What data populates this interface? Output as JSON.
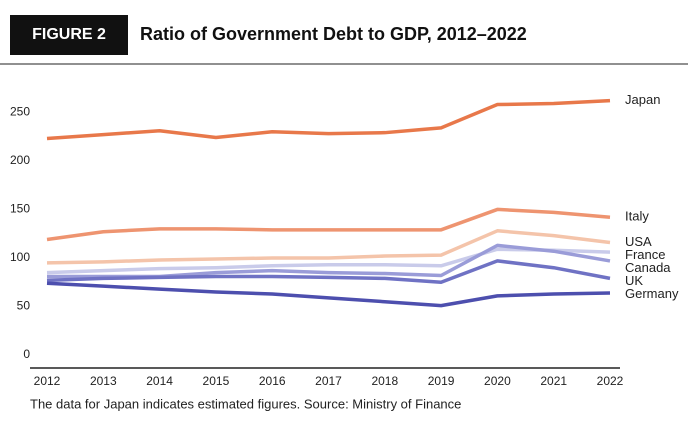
{
  "header": {
    "badge": "FIGURE 2"
  },
  "chart_data": {
    "type": "line",
    "title": "Ratio of Government Debt to GDP, 2012–2022",
    "categories": [
      "2012",
      "2013",
      "2014",
      "2015",
      "2016",
      "2017",
      "2018",
      "2019",
      "2020",
      "2021",
      "2022"
    ],
    "series": [
      {
        "name": "Japan",
        "color": "#e8784a",
        "values": [
          228,
          232,
          236,
          229,
          235,
          233,
          234,
          239,
          263,
          264,
          267
        ]
      },
      {
        "name": "Italy",
        "color": "#ee9470",
        "values": [
          124,
          132,
          135,
          135,
          134,
          134,
          134,
          134,
          155,
          152,
          147
        ]
      },
      {
        "name": "USA",
        "color": "#f4c4aa",
        "values": [
          100,
          101,
          103,
          104,
          105,
          105,
          107,
          108,
          133,
          128,
          121
        ]
      },
      {
        "name": "France",
        "color": "#c9cbea",
        "values": [
          90,
          92,
          94,
          95,
          97,
          98,
          98,
          97,
          114,
          113,
          111
        ]
      },
      {
        "name": "Canada",
        "color": "#9a9cd8",
        "values": [
          86,
          86,
          86,
          90,
          92,
          90,
          89,
          87,
          118,
          112,
          102
        ]
      },
      {
        "name": "UK",
        "color": "#6f72c4",
        "values": [
          82,
          84,
          85,
          86,
          86,
          85,
          84,
          80,
          102,
          95,
          84
        ]
      },
      {
        "name": "Germany",
        "color": "#4d4fae",
        "values": [
          79,
          76,
          73,
          70,
          68,
          64,
          60,
          56,
          66,
          68,
          69
        ]
      }
    ],
    "ylim": [
      0,
      280
    ],
    "yticks": [
      0,
      50,
      100,
      150,
      200,
      250
    ],
    "grid": false,
    "note": "The data for Japan indicates estimated figures. Source: Ministry of Finance"
  }
}
